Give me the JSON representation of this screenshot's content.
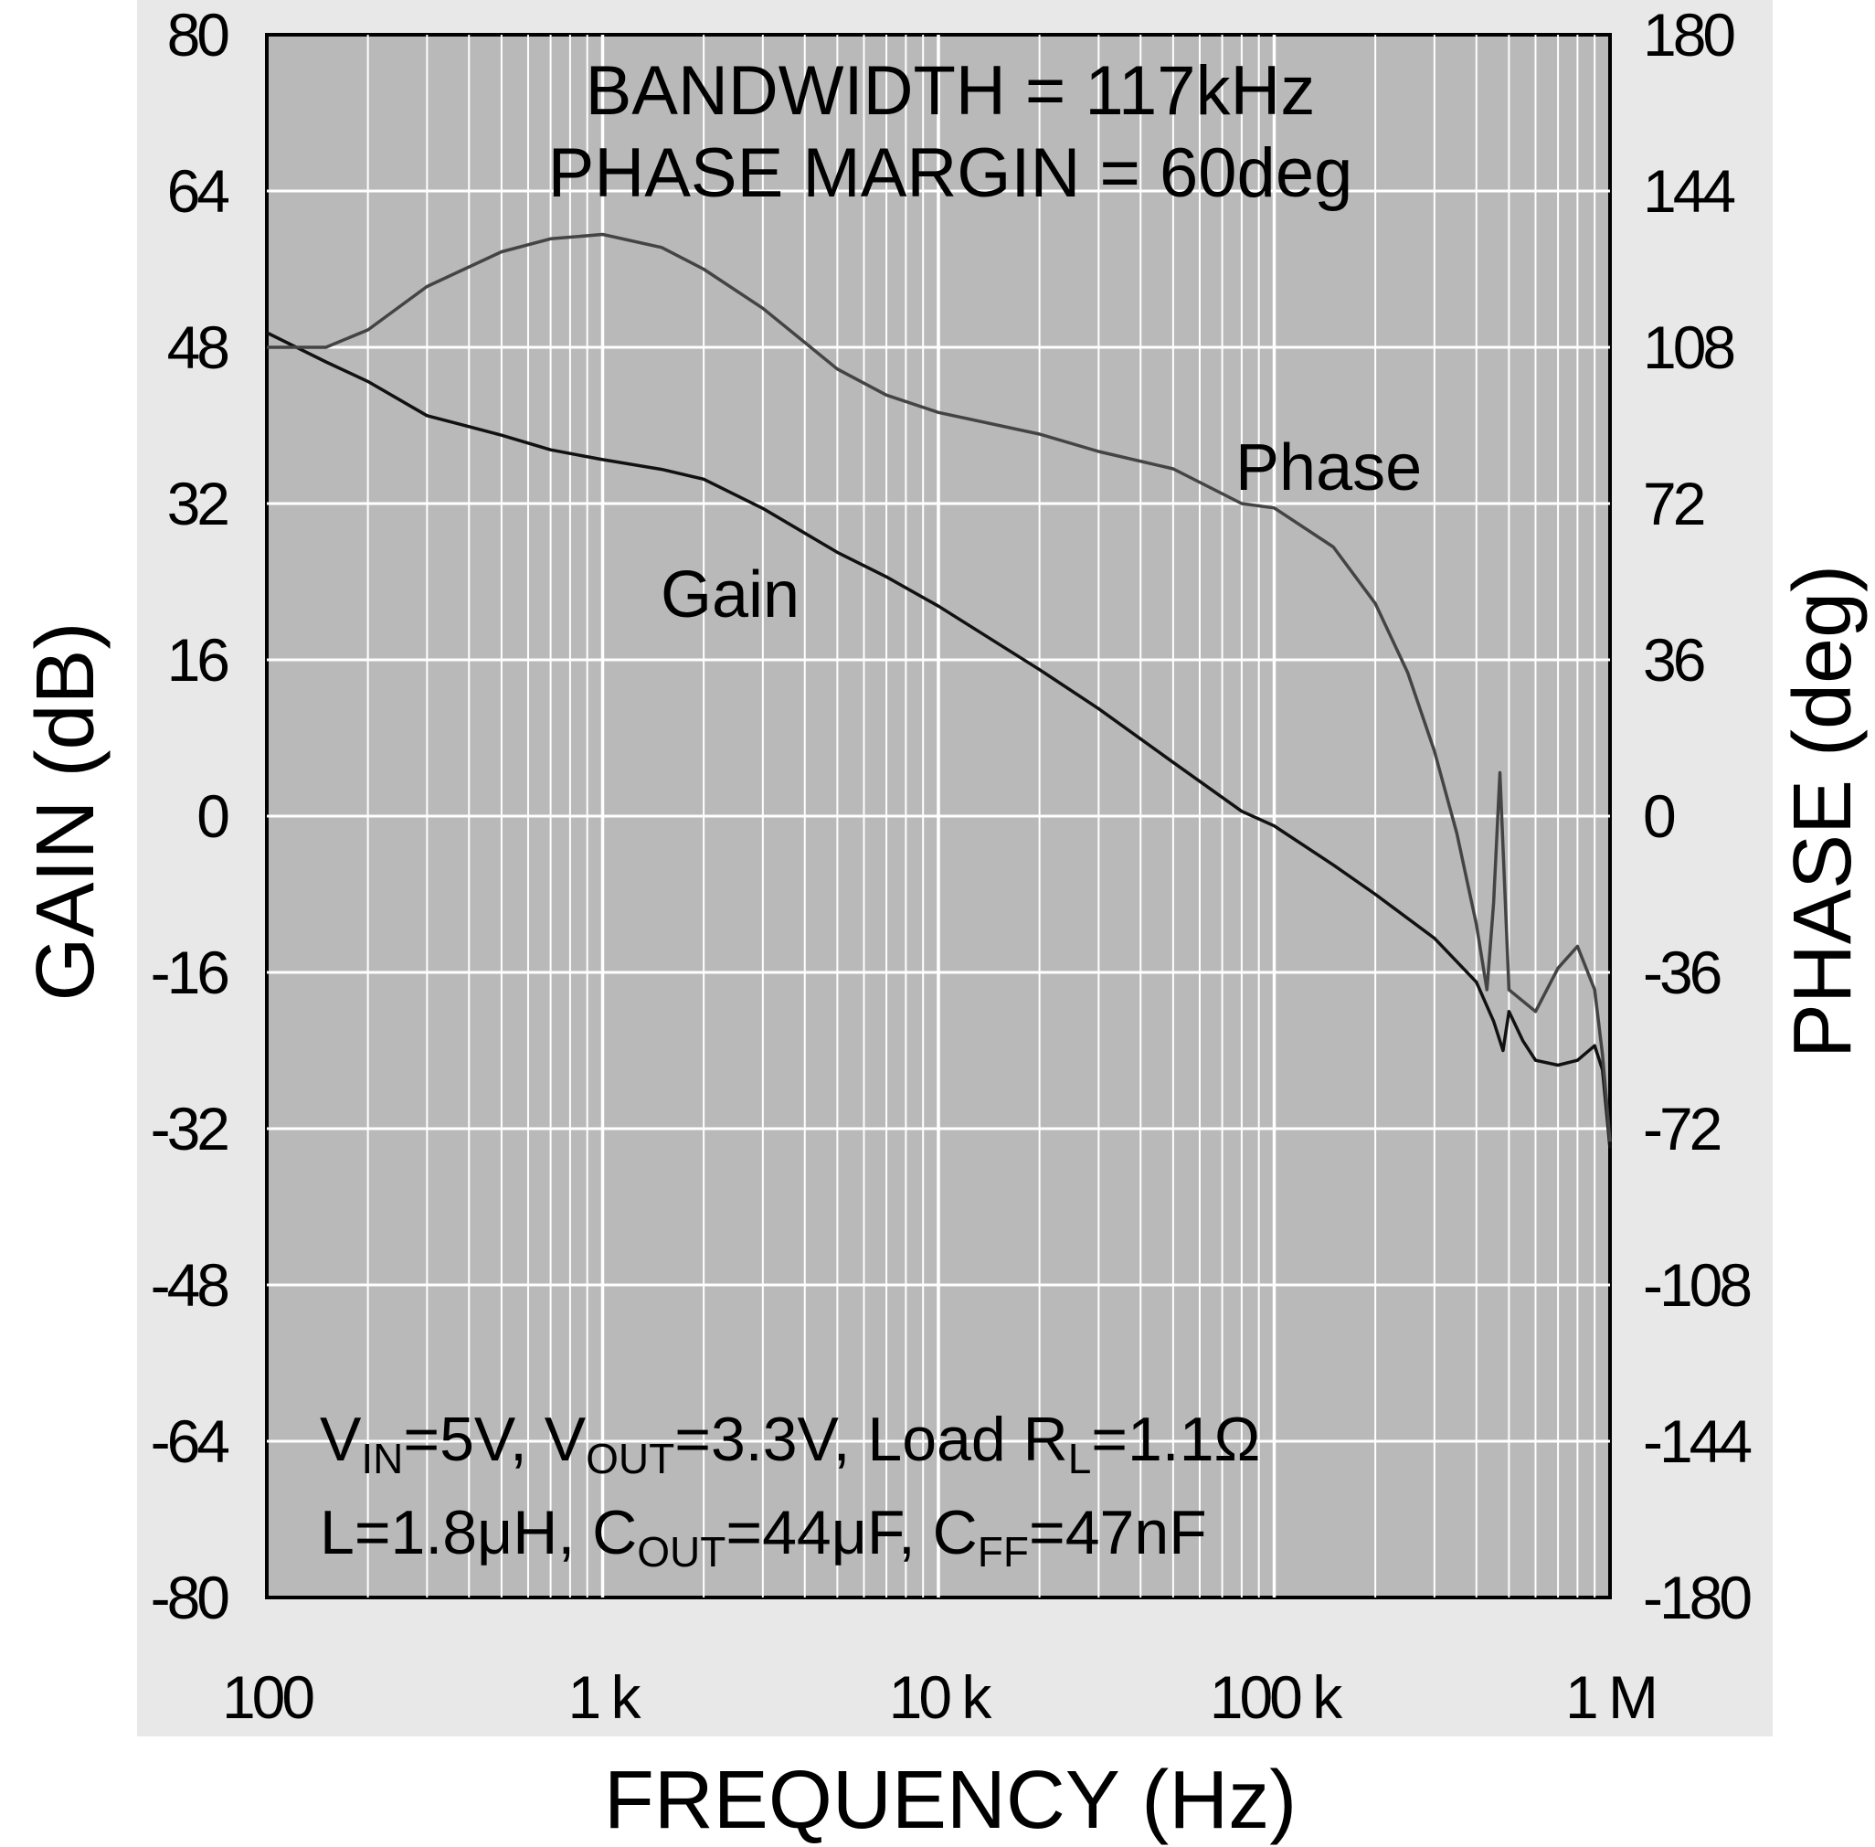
{
  "chart_data": {
    "type": "line",
    "title_lines": [
      "BANDWIDTH = 117kHz",
      "PHASE MARGIN = 60deg"
    ],
    "xlabel": "FREQUENCY (Hz)",
    "ylabel_left": "GAIN (dB)",
    "ylabel_right": "PHASE (deg)",
    "x_scale": "log",
    "xlim": [
      100,
      1000000
    ],
    "ylim_left": [
      -80,
      80
    ],
    "ylim_right": [
      -180,
      180
    ],
    "x_ticks": [
      100,
      1000,
      10000,
      100000,
      1000000
    ],
    "x_tick_labels": [
      "100",
      "1 k",
      "10 k",
      "100 k",
      "1 M"
    ],
    "y_ticks_left": [
      80,
      64,
      48,
      32,
      16,
      0,
      -16,
      -32,
      -48,
      -64,
      -80
    ],
    "y_tick_labels_left": [
      "80",
      "64",
      "48",
      "32",
      "16",
      "0",
      "-16",
      "-32",
      "-48",
      "-64",
      "-80"
    ],
    "y_ticks_right": [
      180,
      144,
      108,
      72,
      36,
      0,
      -36,
      -72,
      -108,
      -144,
      -180
    ],
    "y_tick_labels_right": [
      "180",
      "144",
      "108",
      "72",
      "36",
      "0",
      "-36",
      "-72",
      "-108",
      "-144",
      "-180"
    ],
    "grid": true,
    "annotations": {
      "gain_label": "Gain",
      "phase_label": "Phase",
      "cond_line1": [
        {
          "t": "V",
          "sub": false
        },
        {
          "t": "IN",
          "sub": true
        },
        {
          "t": "=5V, V",
          "sub": false
        },
        {
          "t": "OUT",
          "sub": true
        },
        {
          "t": "=3.3V, Load R",
          "sub": false
        },
        {
          "t": "L",
          "sub": true
        },
        {
          "t": "=1.1Ω",
          "sub": false
        }
      ],
      "cond_line2": [
        {
          "t": "L=1.8μH, C",
          "sub": false
        },
        {
          "t": "OUT",
          "sub": true
        },
        {
          "t": "=44μF, C",
          "sub": false
        },
        {
          "t": "FF",
          "sub": true
        },
        {
          "t": "=47nF",
          "sub": false
        }
      ]
    },
    "series": [
      {
        "name": "Gain",
        "axis": "left",
        "color": "#111111",
        "x": [
          100,
          150,
          200,
          300,
          500,
          700,
          1000,
          1500,
          2000,
          3000,
          5000,
          7000,
          10000,
          20000,
          30000,
          50000,
          80000,
          100000,
          150000,
          200000,
          300000,
          400000,
          450000,
          480000,
          500000,
          550000,
          600000,
          700000,
          800000,
          900000,
          950000,
          1000000
        ],
        "y": [
          49.5,
          46.5,
          44.5,
          41,
          39,
          37.5,
          36.5,
          35.5,
          34.5,
          31.5,
          27,
          24.5,
          21.5,
          15,
          11,
          5.5,
          0.5,
          -1,
          -5,
          -8,
          -12.5,
          -17,
          -21,
          -24,
          -20,
          -23,
          -25,
          -25.5,
          -25,
          -23.5,
          -26,
          -34
        ]
      },
      {
        "name": "Phase",
        "axis": "right",
        "color": "#444444",
        "x": [
          100,
          150,
          200,
          300,
          500,
          700,
          1000,
          1500,
          2000,
          3000,
          5000,
          7000,
          10000,
          20000,
          30000,
          50000,
          80000,
          100000,
          150000,
          200000,
          250000,
          300000,
          350000,
          400000,
          430000,
          450000,
          470000,
          500000,
          600000,
          700000,
          800000,
          900000,
          950000,
          1000000
        ],
        "y": [
          108,
          108,
          112,
          122,
          130,
          133,
          134,
          131,
          126,
          117,
          103,
          97,
          93,
          88,
          84,
          80,
          72,
          71,
          62,
          49,
          33,
          15,
          -4,
          -25,
          -40,
          -20,
          10,
          -40,
          -45,
          -35,
          -30,
          -40,
          -55,
          -75
        ]
      }
    ]
  }
}
